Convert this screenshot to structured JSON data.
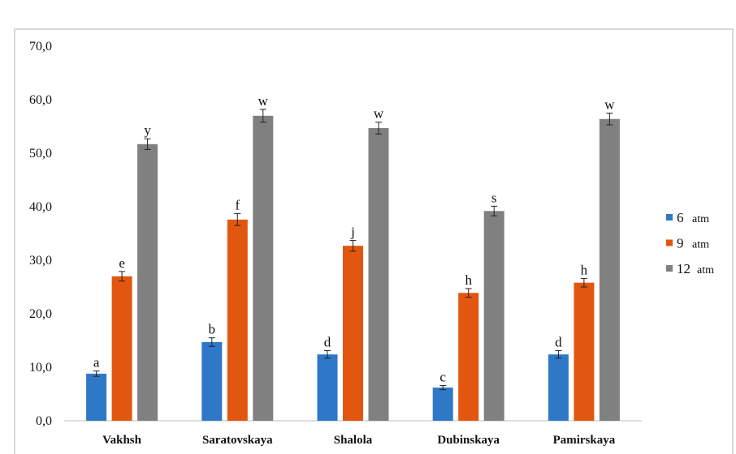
{
  "chart_data": {
    "type": "bar",
    "title": "",
    "xlabel": "",
    "ylabel": "",
    "ylim": [
      0,
      70
    ],
    "yticks": [
      0,
      10,
      20,
      30,
      40,
      50,
      60,
      70
    ],
    "ytick_labels": [
      "0,0",
      "10,0",
      "20,0",
      "30,0",
      "40,0",
      "50,0",
      "60,0",
      "70,0"
    ],
    "grid": false,
    "legend_position": "right",
    "categories": [
      "Vakhsh",
      "Saratovskaya",
      "Shalola",
      "Dubinskaya",
      "Pamirskaya"
    ],
    "series": [
      {
        "name": "6  atm",
        "legend_num": "6",
        "legend_unit": "atm",
        "color": "#2F78C8",
        "values": [
          8.8,
          14.7,
          12.4,
          6.2,
          12.4
        ],
        "errors": [
          0.5,
          0.8,
          0.7,
          0.4,
          0.7
        ],
        "labels": [
          "a",
          "b",
          "d",
          "c",
          "d"
        ]
      },
      {
        "name": "9  atm",
        "legend_num": "9",
        "legend_unit": "atm",
        "color": "#E2570F",
        "values": [
          27.0,
          37.6,
          32.7,
          23.9,
          25.8
        ],
        "errors": [
          0.9,
          1.1,
          1.0,
          0.8,
          0.8
        ],
        "labels": [
          "e",
          "f",
          "j",
          "h",
          "h"
        ]
      },
      {
        "name": "12  atm",
        "legend_num": "12",
        "legend_unit": "atm",
        "color": "#808080",
        "values": [
          51.7,
          57.0,
          54.7,
          39.2,
          56.4
        ],
        "errors": [
          1.0,
          1.2,
          1.1,
          0.9,
          1.1
        ],
        "labels": [
          "y",
          "w",
          "w",
          "s",
          "w"
        ]
      }
    ]
  }
}
